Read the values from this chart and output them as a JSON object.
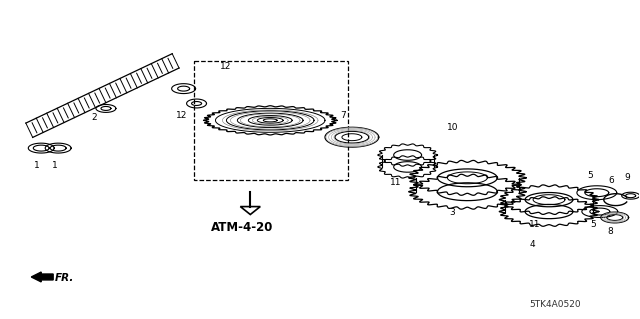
{
  "bg_color": "#ffffff",
  "line_color": "#000000",
  "atm_label": "ATM-4-20",
  "fr_label": "FR.",
  "part_code": "5TK4A0520"
}
